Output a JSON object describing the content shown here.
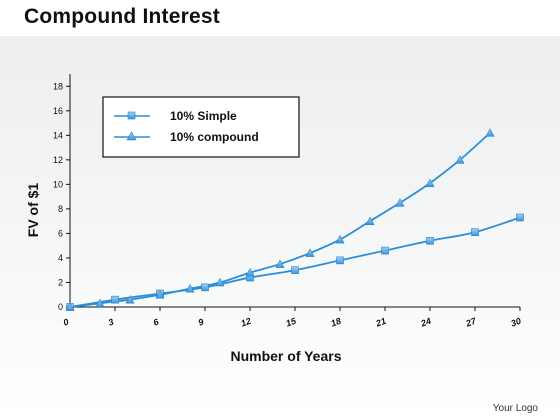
{
  "page": {
    "title": "Compound Interest",
    "logo_text": "Your Logo"
  },
  "chart_data": {
    "type": "line",
    "title": "Compound Interest",
    "xlabel": "Number of Years",
    "ylabel": "FV of $1",
    "xlim": [
      0,
      30
    ],
    "ylim": [
      0,
      19
    ],
    "x_ticks": [
      0,
      3,
      6,
      9,
      12,
      15,
      18,
      21,
      24,
      27,
      30
    ],
    "y_ticks": [
      0,
      2,
      4,
      6,
      8,
      10,
      12,
      14,
      16,
      18
    ],
    "grid": false,
    "legend": "top-left",
    "series": [
      {
        "name": "10% Simple",
        "marker": "square",
        "color": "#2a8fd8",
        "x": [
          0,
          3,
          6,
          9,
          12,
          15,
          18,
          21,
          24,
          27,
          30
        ],
        "y": [
          0,
          0.6,
          1.1,
          1.6,
          2.4,
          3.0,
          3.8,
          4.6,
          5.4,
          6.1,
          7.3
        ]
      },
      {
        "name": "10% compound",
        "marker": "triangle",
        "color": "#2a8fd8",
        "x": [
          0,
          2,
          4,
          6,
          8,
          10,
          12,
          14,
          16,
          18,
          20,
          22,
          24,
          26,
          28
        ],
        "y": [
          0,
          0.3,
          0.6,
          1.0,
          1.5,
          2.0,
          2.8,
          3.5,
          4.4,
          5.5,
          7.0,
          8.5,
          10.1,
          12.0,
          14.2
        ]
      }
    ]
  }
}
